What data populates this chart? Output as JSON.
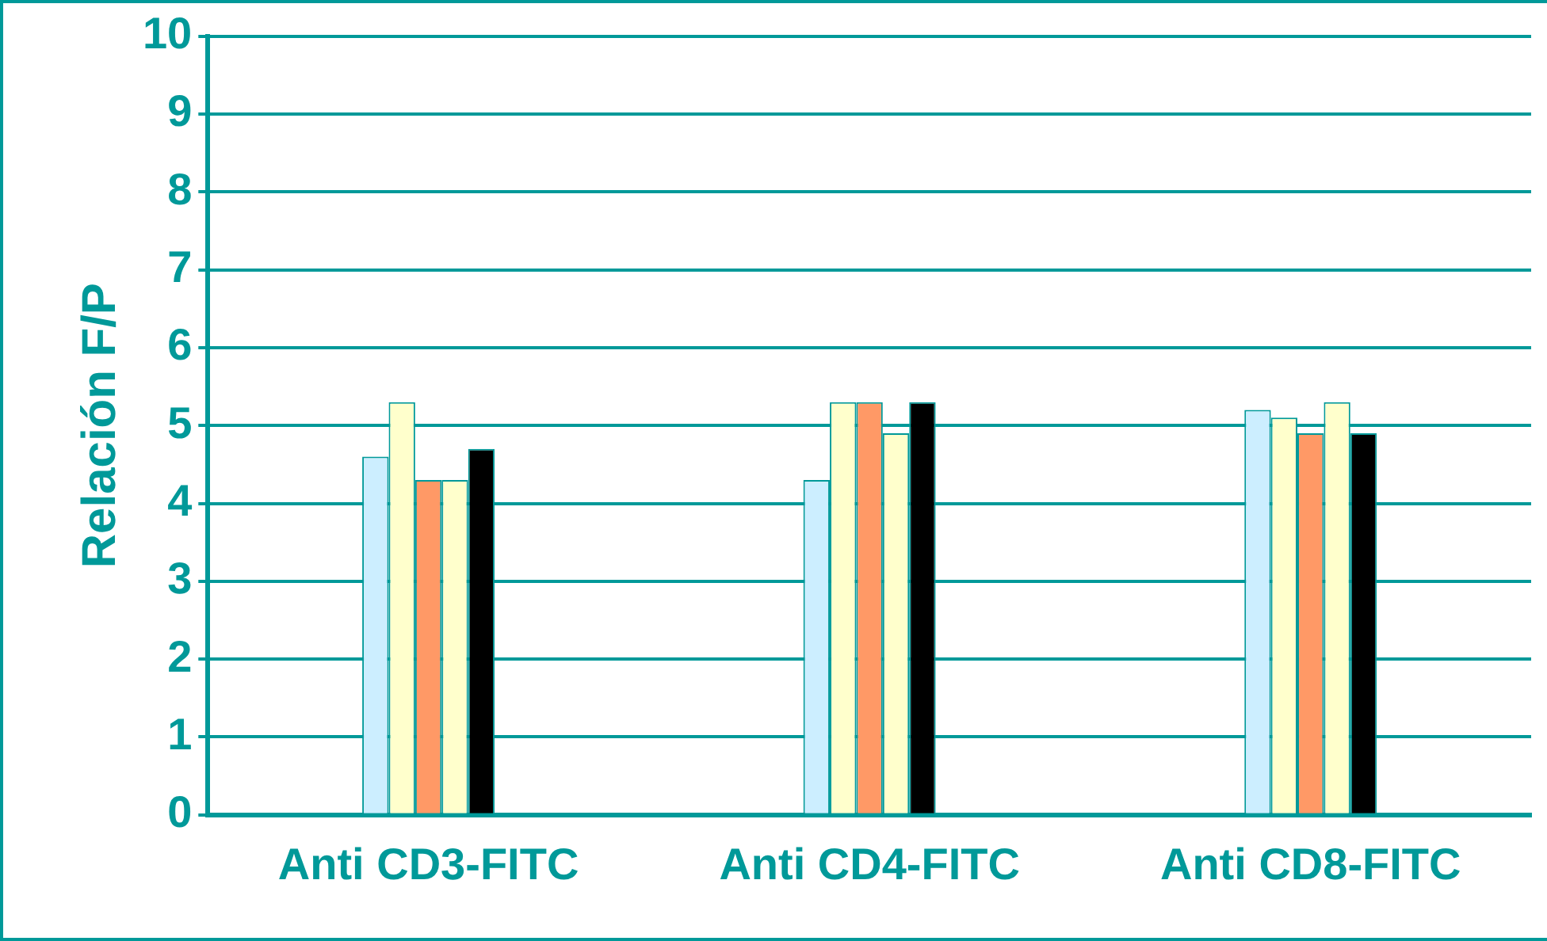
{
  "chart_data": {
    "type": "bar",
    "ylabel": "Relación F/P",
    "categories": [
      "Anti CD3-FITC",
      "Anti CD4-FITC",
      "Anti CD8-FITC"
    ],
    "series": [
      {
        "color": "#cceeff",
        "values": [
          4.6,
          4.3,
          5.2
        ]
      },
      {
        "color": "#ffffcc",
        "values": [
          5.3,
          5.3,
          5.1
        ]
      },
      {
        "color": "#ff9966",
        "values": [
          4.3,
          5.3,
          4.9
        ]
      },
      {
        "color": "#ffffcc",
        "values": [
          4.3,
          4.9,
          5.3
        ]
      },
      {
        "color": "#000000",
        "values": [
          4.7,
          5.3,
          4.9
        ]
      }
    ],
    "ylim": [
      0,
      10
    ],
    "yticks": [
      0,
      1,
      2,
      3,
      4,
      5,
      6,
      7,
      8,
      9,
      10
    ],
    "grid": "y",
    "legend": false
  }
}
